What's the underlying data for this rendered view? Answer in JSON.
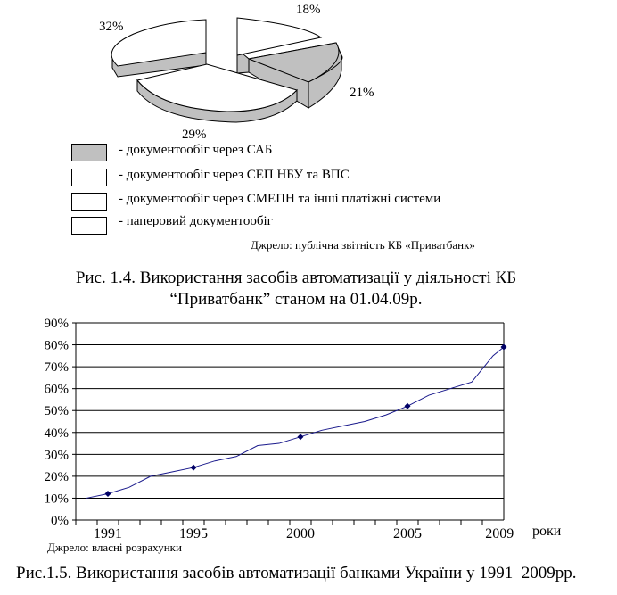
{
  "pie_chart": {
    "slices": [
      {
        "label": "18%",
        "value": 18,
        "fill": "#ffffff"
      },
      {
        "label": "21%",
        "value": 21,
        "fill": "#c0c0c0"
      },
      {
        "label": "29%",
        "value": 29,
        "fill": "#ffffff"
      },
      {
        "label": "32%",
        "value": 32,
        "fill": "#ffffff"
      }
    ],
    "legend": [
      {
        "text": "- документообіг через САБ",
        "fill": "#c0c0c0"
      },
      {
        "text": "- документообіг через СЕП НБУ та ВПС",
        "fill": "#ffffff"
      },
      {
        "text": "- документообіг через СМЕПН та інші платіжні системи",
        "fill": "#ffffff"
      },
      {
        "text": "- паперовий документообіг",
        "fill": "#ffffff"
      }
    ],
    "source": "Джрело: публічна звітність КБ «Приватбанк»"
  },
  "figure1_caption_line1": "Рис. 1.4. Використання засобів автоматизації у діяльності КБ",
  "figure1_caption_line2": "“Приватбанк” станом на 01.04.09р.",
  "chart_data": {
    "type": "line",
    "x_tick_labels": [
      "1991",
      "1995",
      "2000",
      "2005",
      "2009"
    ],
    "x_axis_unit": "роки",
    "y_tick_labels": [
      "0%",
      "10%",
      "20%",
      "30%",
      "40%",
      "50%",
      "60%",
      "70%",
      "80%",
      "90%"
    ],
    "ylim": [
      0,
      90
    ],
    "xlim": [
      1989.5,
      2009.5
    ],
    "grid": "horizontal",
    "line_color": "#1a1a8c",
    "x": [
      1990,
      1991,
      1992,
      1993,
      1994,
      1995,
      1996,
      1997,
      1998,
      1999,
      2000,
      2001,
      2002,
      2003,
      2004,
      2005,
      2006,
      2007,
      2008,
      2009
    ],
    "values": [
      10,
      12,
      15,
      20,
      22,
      24,
      27,
      29,
      34,
      35,
      38,
      41,
      43,
      45,
      48,
      52,
      57,
      60,
      63,
      75
    ],
    "markers": [
      {
        "x": 1991,
        "y": 12
      },
      {
        "x": 1995,
        "y": 24
      },
      {
        "x": 2000,
        "y": 38
      },
      {
        "x": 2005,
        "y": 52
      },
      {
        "x": 2009.5,
        "y": 79
      }
    ],
    "end_point": {
      "x": 2009.5,
      "y": 79
    }
  },
  "line_source": "Джрело: власні розрахунки",
  "figure2_caption": "Рис.1.5. Використання засобів автоматизації банками України у 1991–2009рр."
}
